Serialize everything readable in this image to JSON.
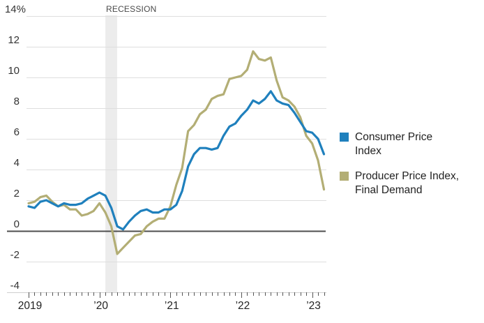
{
  "chart_data": {
    "type": "line",
    "title": "",
    "unit": "percent",
    "y_axis": {
      "max": 14,
      "min": -4,
      "tick_step": 2,
      "tick_labels": [
        "14%",
        "12",
        "10",
        "8",
        "6",
        "4",
        "2",
        "0",
        "-2",
        "-4"
      ]
    },
    "x_axis": {
      "start": "2019-01",
      "end": "2023-03",
      "interval": "monthly",
      "tick_labels": [
        {
          "label": "2019",
          "month_index": 0
        },
        {
          "label": "’20",
          "month_index": 12
        },
        {
          "label": "’21",
          "month_index": 24
        },
        {
          "label": "’22",
          "month_index": 36
        },
        {
          "label": "’23",
          "month_index": 48
        }
      ]
    },
    "recession_band": {
      "label": "RECESSION",
      "start": "2020-02",
      "end": "2020-04",
      "color": "#ececec"
    },
    "series": [
      {
        "name": "Consumer Price Index",
        "color": "#1f80bd",
        "values": [
          1.6,
          1.5,
          1.9,
          2.0,
          1.8,
          1.6,
          1.8,
          1.7,
          1.7,
          1.8,
          2.1,
          2.3,
          2.5,
          2.3,
          1.5,
          0.3,
          0.1,
          0.6,
          1.0,
          1.3,
          1.4,
          1.2,
          1.2,
          1.4,
          1.4,
          1.7,
          2.6,
          4.2,
          5.0,
          5.4,
          5.4,
          5.3,
          5.4,
          6.2,
          6.8,
          7.0,
          7.5,
          7.9,
          8.5,
          8.3,
          8.6,
          9.1,
          8.5,
          8.3,
          8.2,
          7.7,
          7.1,
          6.5,
          6.4,
          6.0,
          5.0
        ]
      },
      {
        "name": "Producer Price Index, Final Demand",
        "color": "#b3ae75",
        "values": [
          1.8,
          1.9,
          2.2,
          2.3,
          1.9,
          1.6,
          1.7,
          1.4,
          1.4,
          1.0,
          1.1,
          1.3,
          1.8,
          1.2,
          0.3,
          -1.5,
          -1.1,
          -0.7,
          -0.3,
          -0.2,
          0.3,
          0.6,
          0.8,
          0.8,
          1.6,
          3.0,
          4.1,
          6.5,
          6.9,
          7.6,
          7.9,
          8.6,
          8.8,
          8.9,
          9.9,
          10.0,
          10.1,
          10.5,
          11.7,
          11.2,
          11.1,
          11.3,
          9.8,
          8.7,
          8.5,
          8.1,
          7.4,
          6.2,
          5.7,
          4.6,
          2.7
        ]
      }
    ],
    "legend": [
      {
        "label": "Consumer Price\nIndex"
      },
      {
        "label": "Producer Price Index,\nFinal Demand"
      }
    ],
    "style": {
      "gridline_color": "#dedede",
      "zero_line_color": "#4d4d4d",
      "axis_line_color": "#cfcfcf",
      "tick_color": "#555555",
      "axis_text_color": "#333333"
    }
  }
}
